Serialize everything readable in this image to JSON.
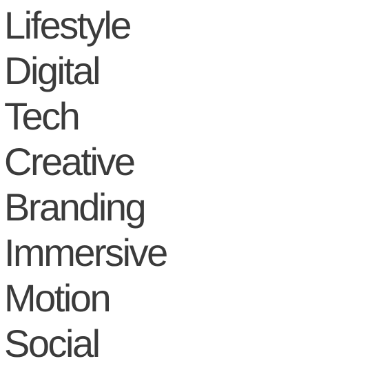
{
  "menu": {
    "items": [
      {
        "label": "Lifestyle"
      },
      {
        "label": "Digital"
      },
      {
        "label": "Tech"
      },
      {
        "label": "Creative"
      },
      {
        "label": "Branding"
      },
      {
        "label": "Immersive"
      },
      {
        "label": "Motion"
      },
      {
        "label": "Social"
      },
      {
        "label": ""
      }
    ]
  },
  "colors": {
    "text": "#3b3b3b",
    "background": "#ffffff"
  }
}
